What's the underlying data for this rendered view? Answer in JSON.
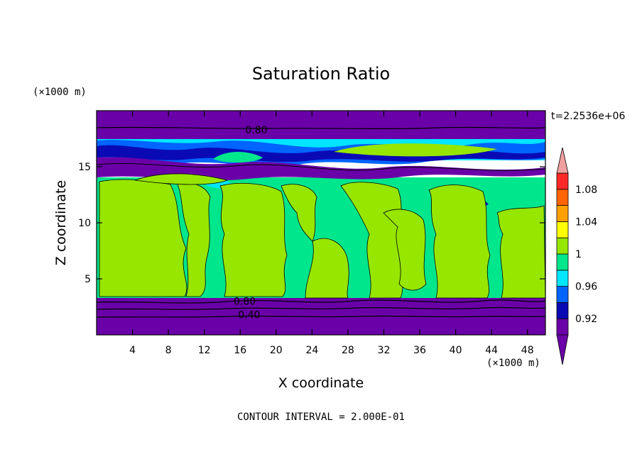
{
  "chart_data": {
    "type": "heatmap",
    "title": "Saturation Ratio",
    "xlabel": "X coordinate",
    "ylabel": "Z coordinate",
    "x_unit": "(×1000 m)",
    "y_unit": "(×1000 m)",
    "time_label": "t=2.2536e+06",
    "contour_interval_label": "CONTOUR INTERVAL = 2.000E-01",
    "xlim": [
      0,
      50
    ],
    "ylim": [
      0,
      20
    ],
    "x_ticks": [
      4,
      8,
      12,
      16,
      20,
      24,
      28,
      32,
      36,
      40,
      44,
      48
    ],
    "y_ticks": [
      5,
      10,
      15
    ],
    "colorbar": {
      "levels": [
        0.9,
        0.92,
        0.94,
        0.96,
        0.98,
        1.0,
        1.02,
        1.04,
        1.06,
        1.08,
        1.1
      ],
      "labels": [
        "0.92",
        "0.96",
        "1",
        "1.04",
        "1.08"
      ],
      "label_values": [
        0.92,
        0.96,
        1.0,
        1.04,
        1.08
      ],
      "colors": [
        "#6a00a8",
        "#0a0ab4",
        "#0064ff",
        "#00e6ff",
        "#00e68c",
        "#96e600",
        "#ffff00",
        "#ffa000",
        "#ff6400",
        "#ff2828"
      ],
      "under_color": "#6a00a8",
      "over_color": "#f0a0a0"
    },
    "bands": [
      {
        "z": [
          0.0,
          3.4
        ],
        "value": "< 0.92"
      },
      {
        "z": [
          3.4,
          14.0
        ],
        "value": "0.98-1.02"
      },
      {
        "z": [
          14.0,
          17.5
        ],
        "value": "0.92-0.98"
      },
      {
        "z": [
          17.5,
          20.0
        ],
        "value": "< 0.92"
      }
    ],
    "contour_labels": [
      {
        "text": "0.80",
        "x": 17.8,
        "z": 18.3
      },
      {
        "text": "0.80",
        "x": 16.5,
        "z": 3.0
      },
      {
        "text": "0.40",
        "x": 17.0,
        "z": 1.8
      }
    ]
  }
}
